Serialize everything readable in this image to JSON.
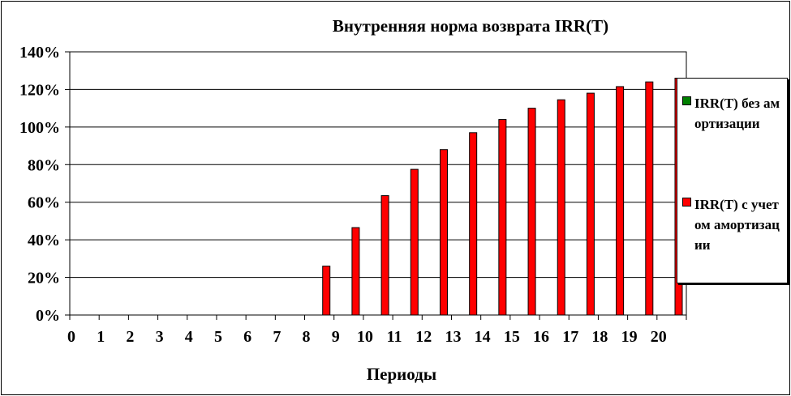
{
  "chart_data": {
    "type": "bar",
    "title": "Внутренняя норма возврата IRR(T)",
    "xlabel": "Периоды",
    "ylabel": "",
    "categories": [
      "0",
      "1",
      "2",
      "3",
      "4",
      "5",
      "6",
      "7",
      "8",
      "9",
      "10",
      "11",
      "12",
      "13",
      "14",
      "15",
      "16",
      "17",
      "18",
      "19",
      "20"
    ],
    "y_ticks": [
      "0%",
      "20%",
      "40%",
      "60%",
      "80%",
      "100%",
      "120%",
      "140%"
    ],
    "ylim": [
      0,
      140
    ],
    "grid": true,
    "legend_position": "right",
    "series": [
      {
        "name": "IRR(T) без амортизации",
        "color": "#008000",
        "values": [
          0,
          0,
          0,
          0,
          0,
          0,
          0,
          0,
          0,
          0,
          0,
          0,
          0,
          0,
          0,
          0,
          0,
          0,
          0,
          0,
          0
        ]
      },
      {
        "name": "IRR(T) с учетом амортизации",
        "color": "#ff0000",
        "values": [
          0,
          0,
          0,
          0,
          0,
          0,
          0,
          0,
          26,
          46.5,
          63.5,
          77.5,
          88,
          97,
          104,
          110,
          114.5,
          118,
          121.5,
          124,
          126
        ]
      }
    ]
  }
}
